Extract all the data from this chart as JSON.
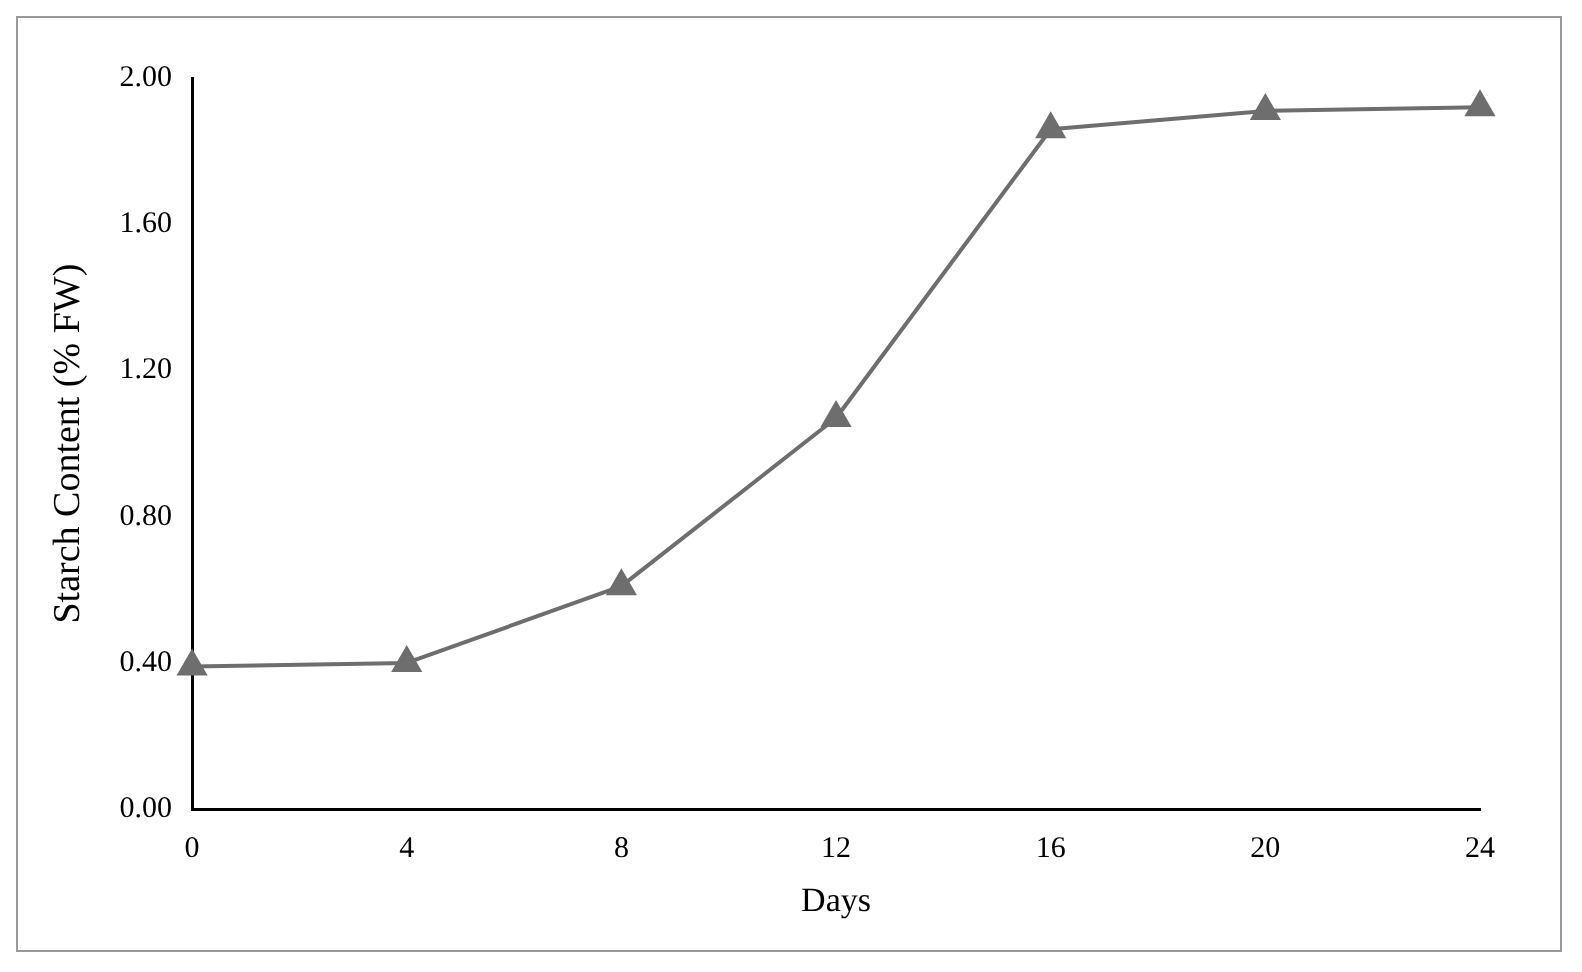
{
  "chart_data": {
    "type": "line",
    "xlabel": "Days",
    "ylabel": "Starch Content (% FW)",
    "x": [
      0,
      4,
      8,
      12,
      16,
      20,
      24
    ],
    "series": [
      {
        "color": "#6e6e6e",
        "values": [
          0.39,
          0.4,
          0.61,
          1.07,
          1.86,
          1.91,
          1.92
        ]
      }
    ],
    "xlim": [
      0,
      24
    ],
    "xticks": [
      0,
      4,
      8,
      12,
      16,
      20,
      24
    ],
    "ylim": [
      0,
      2
    ],
    "yticks": [
      {
        "value": 0,
        "label": "0.00"
      },
      {
        "value": 0.4,
        "label": "0.40"
      },
      {
        "value": 0.8,
        "label": "0.80"
      },
      {
        "value": 1.2,
        "label": "1.20"
      },
      {
        "value": 1.6,
        "label": "1.60"
      },
      {
        "value": 2,
        "label": "2.00"
      }
    ],
    "grid": false,
    "legend": false,
    "marker": "triangle",
    "line_style": "solid"
  }
}
